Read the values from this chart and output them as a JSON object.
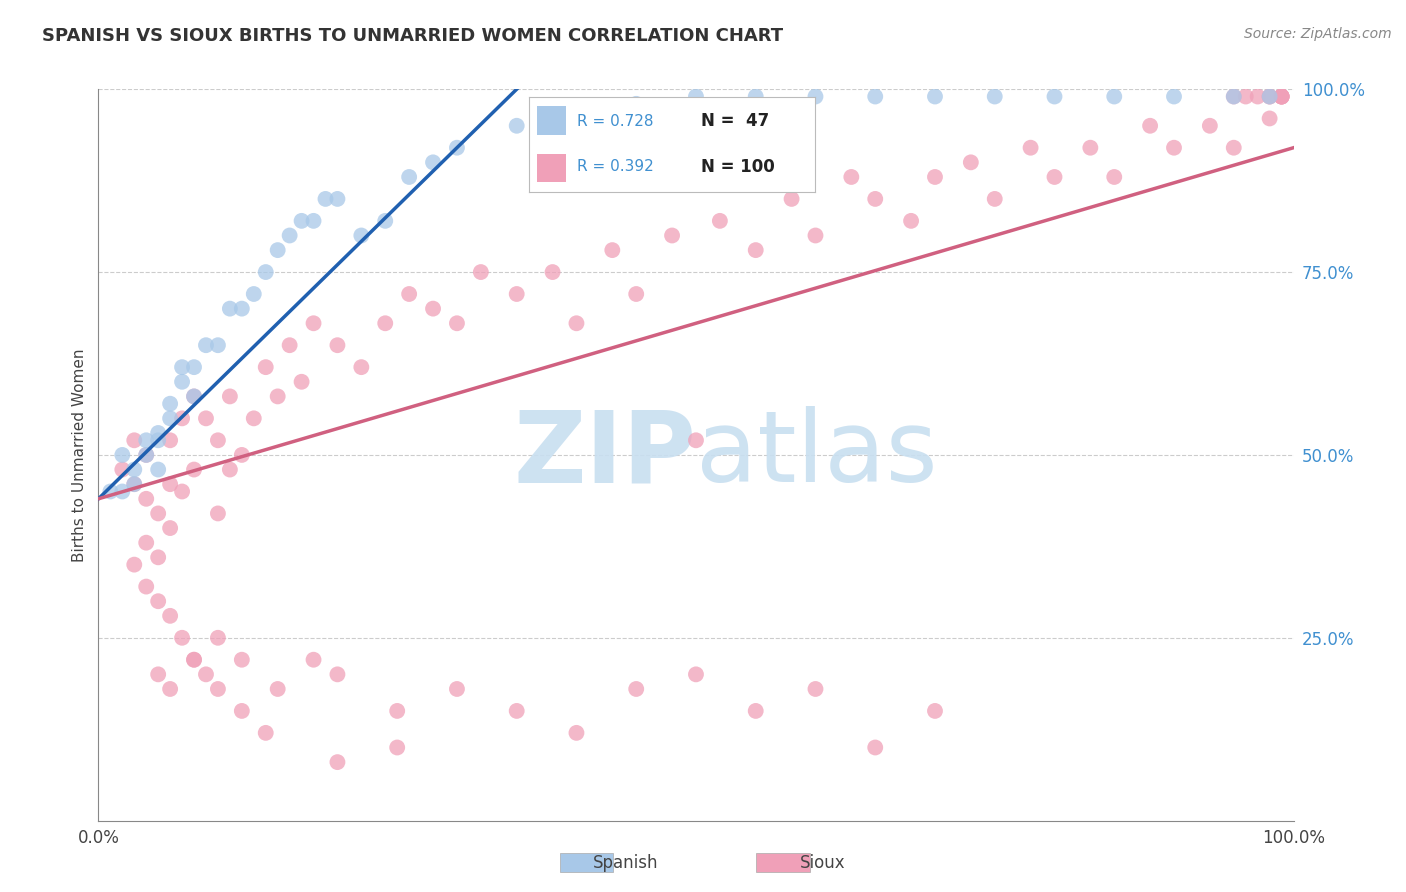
{
  "title": "SPANISH VS SIOUX BIRTHS TO UNMARRIED WOMEN CORRELATION CHART",
  "source": "Source: ZipAtlas.com",
  "ylabel": "Births to Unmarried Women",
  "xlim": [
    0.0,
    1.0
  ],
  "ylim": [
    0.0,
    1.0
  ],
  "R_spanish": 0.728,
  "N_spanish": 47,
  "R_sioux": 0.392,
  "N_sioux": 100,
  "legend_label_spanish": "Spanish",
  "legend_label_sioux": "Sioux",
  "color_spanish": "#a8c8e8",
  "color_sioux": "#f0a0b8",
  "color_spanish_line": "#2060b0",
  "color_sioux_line": "#d06080",
  "color_right_tick": "#4090d0",
  "watermark_color": "#c8dff0",
  "background_color": "#ffffff",
  "grid_color": "#cccccc",
  "spanish_x": [
    0.01,
    0.02,
    0.02,
    0.03,
    0.03,
    0.04,
    0.04,
    0.05,
    0.05,
    0.05,
    0.06,
    0.06,
    0.07,
    0.07,
    0.08,
    0.08,
    0.09,
    0.1,
    0.11,
    0.12,
    0.13,
    0.14,
    0.15,
    0.16,
    0.17,
    0.18,
    0.19,
    0.2,
    0.22,
    0.24,
    0.26,
    0.28,
    0.3,
    0.35,
    0.4,
    0.45,
    0.5,
    0.55,
    0.6,
    0.65,
    0.7,
    0.75,
    0.8,
    0.85,
    0.9,
    0.95,
    0.98
  ],
  "spanish_y": [
    0.45,
    0.45,
    0.5,
    0.46,
    0.48,
    0.5,
    0.52,
    0.48,
    0.52,
    0.53,
    0.55,
    0.57,
    0.6,
    0.62,
    0.58,
    0.62,
    0.65,
    0.65,
    0.7,
    0.7,
    0.72,
    0.75,
    0.78,
    0.8,
    0.82,
    0.82,
    0.85,
    0.85,
    0.8,
    0.82,
    0.88,
    0.9,
    0.92,
    0.95,
    0.97,
    0.98,
    0.99,
    0.99,
    0.99,
    0.99,
    0.99,
    0.99,
    0.99,
    0.99,
    0.99,
    0.99,
    0.99
  ],
  "sioux_x": [
    0.02,
    0.03,
    0.03,
    0.04,
    0.04,
    0.04,
    0.05,
    0.05,
    0.06,
    0.06,
    0.06,
    0.07,
    0.07,
    0.08,
    0.08,
    0.09,
    0.1,
    0.1,
    0.11,
    0.11,
    0.12,
    0.13,
    0.14,
    0.15,
    0.16,
    0.17,
    0.18,
    0.2,
    0.22,
    0.24,
    0.26,
    0.28,
    0.3,
    0.32,
    0.35,
    0.38,
    0.4,
    0.43,
    0.45,
    0.48,
    0.5,
    0.52,
    0.55,
    0.58,
    0.6,
    0.63,
    0.65,
    0.68,
    0.7,
    0.73,
    0.75,
    0.78,
    0.8,
    0.83,
    0.85,
    0.88,
    0.9,
    0.93,
    0.95,
    0.98,
    0.99,
    0.99,
    0.99,
    0.99,
    0.99,
    0.98,
    0.98,
    0.97,
    0.96,
    0.95,
    0.05,
    0.06,
    0.08,
    0.1,
    0.12,
    0.15,
    0.18,
    0.2,
    0.25,
    0.3,
    0.35,
    0.4,
    0.45,
    0.5,
    0.55,
    0.6,
    0.65,
    0.7,
    0.2,
    0.25,
    0.03,
    0.04,
    0.05,
    0.06,
    0.07,
    0.08,
    0.09,
    0.1,
    0.12,
    0.14
  ],
  "sioux_y": [
    0.48,
    0.46,
    0.52,
    0.38,
    0.44,
    0.5,
    0.36,
    0.42,
    0.4,
    0.46,
    0.52,
    0.45,
    0.55,
    0.48,
    0.58,
    0.55,
    0.42,
    0.52,
    0.48,
    0.58,
    0.5,
    0.55,
    0.62,
    0.58,
    0.65,
    0.6,
    0.68,
    0.65,
    0.62,
    0.68,
    0.72,
    0.7,
    0.68,
    0.75,
    0.72,
    0.75,
    0.68,
    0.78,
    0.72,
    0.8,
    0.52,
    0.82,
    0.78,
    0.85,
    0.8,
    0.88,
    0.85,
    0.82,
    0.88,
    0.9,
    0.85,
    0.92,
    0.88,
    0.92,
    0.88,
    0.95,
    0.92,
    0.95,
    0.92,
    0.96,
    0.99,
    0.99,
    0.99,
    0.99,
    0.99,
    0.99,
    0.99,
    0.99,
    0.99,
    0.99,
    0.2,
    0.18,
    0.22,
    0.25,
    0.22,
    0.18,
    0.22,
    0.2,
    0.15,
    0.18,
    0.15,
    0.12,
    0.18,
    0.2,
    0.15,
    0.18,
    0.1,
    0.15,
    0.08,
    0.1,
    0.35,
    0.32,
    0.3,
    0.28,
    0.25,
    0.22,
    0.2,
    0.18,
    0.15,
    0.12
  ]
}
